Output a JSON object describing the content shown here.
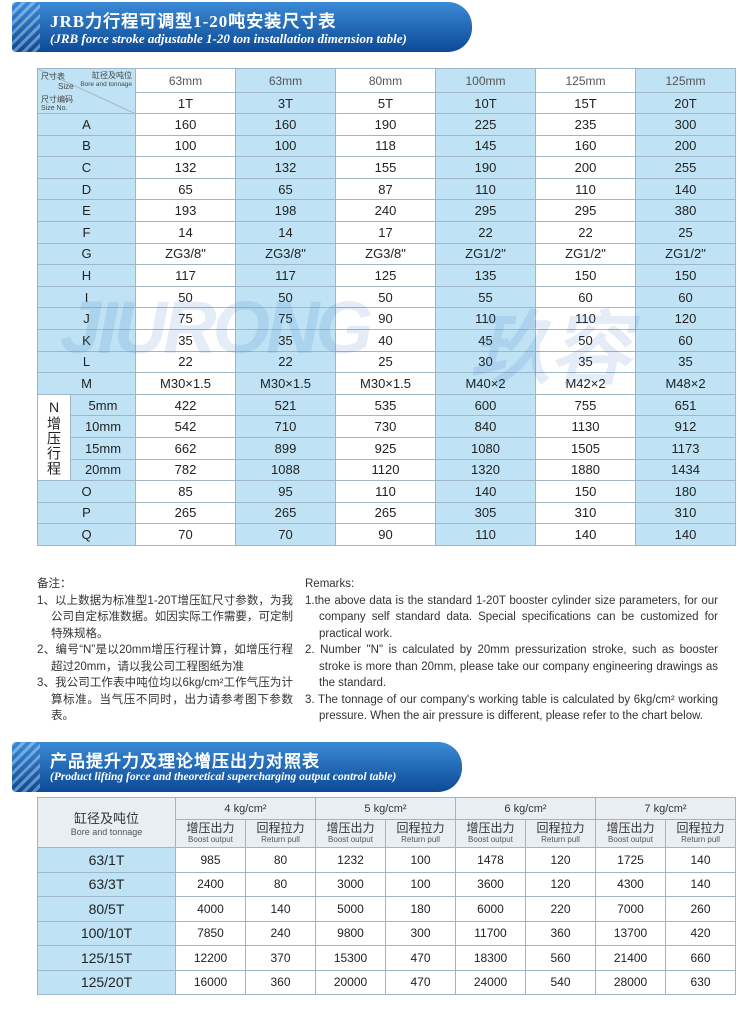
{
  "header": {
    "title_cn": "JRB力行程可调型1-20吨安装尺寸表",
    "title_en": "(JRB force stroke adjustable 1-20 ton installation dimension table)"
  },
  "watermark": {
    "en": "JIURONG",
    "cn": "玖容"
  },
  "table": {
    "corner": {
      "size_cn": "尺寸表",
      "size_en": "Size",
      "bore_cn": "缸径及吨位",
      "bore_en": "Bore and tonnage",
      "no_cn": "尺寸编码",
      "no_en": "Size No."
    },
    "bores": [
      "63mm",
      "63mm",
      "80mm",
      "100mm",
      "125mm",
      "125mm"
    ],
    "tons": [
      "1T",
      "3T",
      "5T",
      "10T",
      "15T",
      "20T"
    ],
    "rows": [
      {
        "label": "A",
        "values": [
          "160",
          "160",
          "190",
          "225",
          "235",
          "300"
        ]
      },
      {
        "label": "B",
        "values": [
          "100",
          "100",
          "118",
          "145",
          "160",
          "200"
        ]
      },
      {
        "label": "C",
        "values": [
          "132",
          "132",
          "155",
          "190",
          "200",
          "255"
        ]
      },
      {
        "label": "D",
        "values": [
          "65",
          "65",
          "87",
          "110",
          "110",
          "140"
        ]
      },
      {
        "label": "E",
        "values": [
          "193",
          "198",
          "240",
          "295",
          "295",
          "380"
        ]
      },
      {
        "label": "F",
        "values": [
          "14",
          "14",
          "17",
          "22",
          "22",
          "25"
        ]
      },
      {
        "label": "G",
        "values": [
          "ZG3/8\"",
          "ZG3/8\"",
          "ZG3/8\"",
          "ZG1/2\"",
          "ZG1/2\"",
          "ZG1/2\""
        ]
      },
      {
        "label": "H",
        "values": [
          "117",
          "117",
          "125",
          "135",
          "150",
          "150"
        ]
      },
      {
        "label": "I",
        "values": [
          "50",
          "50",
          "50",
          "55",
          "60",
          "60"
        ]
      },
      {
        "label": "J",
        "values": [
          "75",
          "75",
          "90",
          "110",
          "110",
          "120"
        ]
      },
      {
        "label": "K",
        "values": [
          "35",
          "35",
          "40",
          "45",
          "50",
          "60"
        ]
      },
      {
        "label": "L",
        "values": [
          "22",
          "22",
          "25",
          "30",
          "35",
          "35"
        ]
      },
      {
        "label": "M",
        "values": [
          "M30×1.5",
          "M30×1.5",
          "M30×1.5",
          "M40×2",
          "M42×2",
          "M48×2"
        ]
      }
    ],
    "stroke": {
      "label": "N增压行程",
      "rows": [
        {
          "size": "5mm",
          "values": [
            "422",
            "521",
            "535",
            "600",
            "755",
            "651"
          ]
        },
        {
          "size": "10mm",
          "values": [
            "542",
            "710",
            "730",
            "840",
            "1130",
            "912"
          ]
        },
        {
          "size": "15mm",
          "values": [
            "662",
            "899",
            "925",
            "1080",
            "1505",
            "1173"
          ]
        },
        {
          "size": "20mm",
          "values": [
            "782",
            "1088",
            "1120",
            "1320",
            "1880",
            "1434"
          ]
        }
      ]
    },
    "rows_after": [
      {
        "label": "O",
        "values": [
          "85",
          "95",
          "110",
          "140",
          "150",
          "180"
        ]
      },
      {
        "label": "P",
        "values": [
          "265",
          "265",
          "265",
          "305",
          "310",
          "310"
        ]
      },
      {
        "label": "Q",
        "values": [
          "70",
          "70",
          "90",
          "110",
          "140",
          "140"
        ]
      }
    ]
  },
  "remarks": {
    "cn_title": "备注：",
    "cn": [
      "1、以上数据为标准型1-20T增压缸尺寸参数，为我公司自定标准数据。如因实际工作需要，可定制特殊规格。",
      "2、编号“N”是以20mm增压行程计算，如增压行程超过20mm，请以我公司工程图纸为准",
      "3、我公司工作表中吨位均以6kg/cm²工作气压为计算标准。当气压不同时，出力请参考图下参数表。"
    ],
    "en_title": "Remarks:",
    "en": [
      "1.the above data is the standard 1-20T booster cylinder size parameters, for our company self standard data. Special specifications can be customized for practical work.",
      "2. Number \"N\" is calculated by 20mm pressurization stroke, such as booster stroke is more than 20mm, please take our company engineering drawings as the standard.",
      "3. The tonnage of our company's working table is calculated by 6kg/cm² working pressure. When the air pressure is different, please refer to the chart below."
    ]
  },
  "header2": {
    "title_cn": "产品提升力及理论增压出力对照表",
    "title_en": "(Product lifting force and theoretical supercharging output control table)"
  },
  "table2": {
    "corner_cn": "缸径及吨位",
    "corner_en": "Bore and tonnage",
    "pressures": [
      "4 kg/cm²",
      "5 kg/cm²",
      "6 kg/cm²",
      "7 kg/cm²"
    ],
    "boost_cn": "增压出力",
    "boost_en": "Boost output",
    "return_cn": "回程拉力",
    "return_en": "Return pull",
    "rows": [
      {
        "label": "63/1T",
        "values": [
          "985",
          "80",
          "1232",
          "100",
          "1478",
          "120",
          "1725",
          "140"
        ]
      },
      {
        "label": "63/3T",
        "values": [
          "2400",
          "80",
          "3000",
          "100",
          "3600",
          "120",
          "4300",
          "140"
        ]
      },
      {
        "label": "80/5T",
        "values": [
          "4000",
          "140",
          "5000",
          "180",
          "6000",
          "220",
          "7000",
          "260"
        ]
      },
      {
        "label": "100/10T",
        "values": [
          "7850",
          "240",
          "9800",
          "300",
          "11700",
          "360",
          "13700",
          "420"
        ]
      },
      {
        "label": "125/15T",
        "values": [
          "12200",
          "370",
          "15300",
          "470",
          "18300",
          "560",
          "21400",
          "660"
        ]
      },
      {
        "label": "125/20T",
        "values": [
          "16000",
          "360",
          "20000",
          "470",
          "24000",
          "540",
          "28000",
          "630"
        ]
      }
    ]
  }
}
